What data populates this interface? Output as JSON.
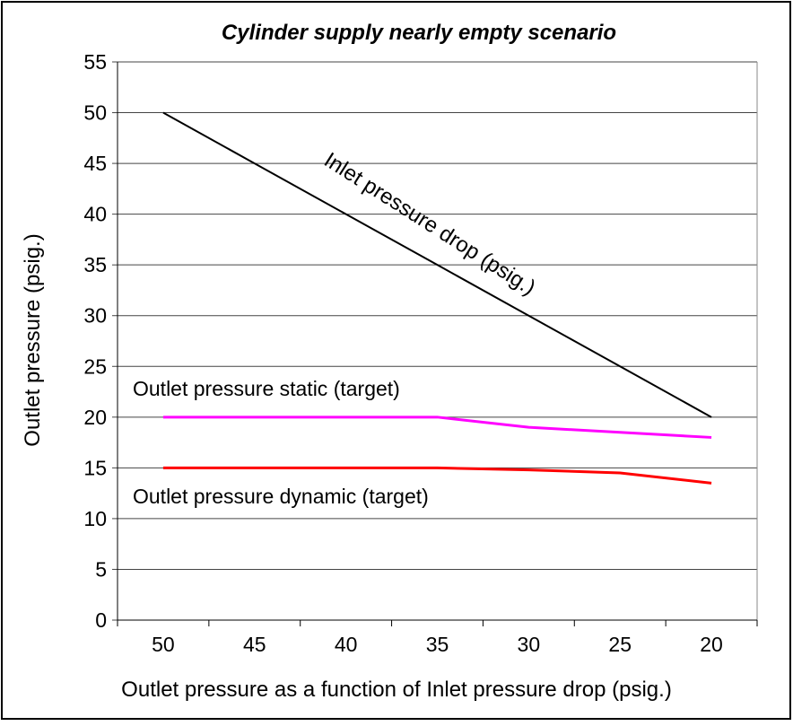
{
  "chart_data": {
    "type": "line",
    "title": "Cylinder supply nearly empty scenario",
    "xlabel": "Outlet pressure as a function of Inlet pressure drop (psig.)",
    "ylabel": "Outlet pressure (psig.)",
    "categories": [
      "50",
      "45",
      "40",
      "35",
      "30",
      "25",
      "20"
    ],
    "ylim": [
      0,
      55
    ],
    "yticks": [
      0,
      5,
      10,
      15,
      20,
      25,
      30,
      35,
      40,
      45,
      50,
      55
    ],
    "grid": true,
    "legend": "none",
    "series": [
      {
        "name": "Inlet pressure drop (psig.)",
        "color": "#000000",
        "values": [
          50,
          45,
          40,
          35,
          30,
          25,
          20
        ]
      },
      {
        "name": "Outlet pressure static (target)",
        "color": "#ff00ff",
        "values": [
          20,
          20,
          20,
          20,
          19,
          18.5,
          18
        ]
      },
      {
        "name": "Outlet pressure dynamic (target)",
        "color": "#ff0000",
        "values": [
          15,
          15,
          15,
          15,
          14.8,
          14.5,
          13.5
        ]
      }
    ]
  }
}
